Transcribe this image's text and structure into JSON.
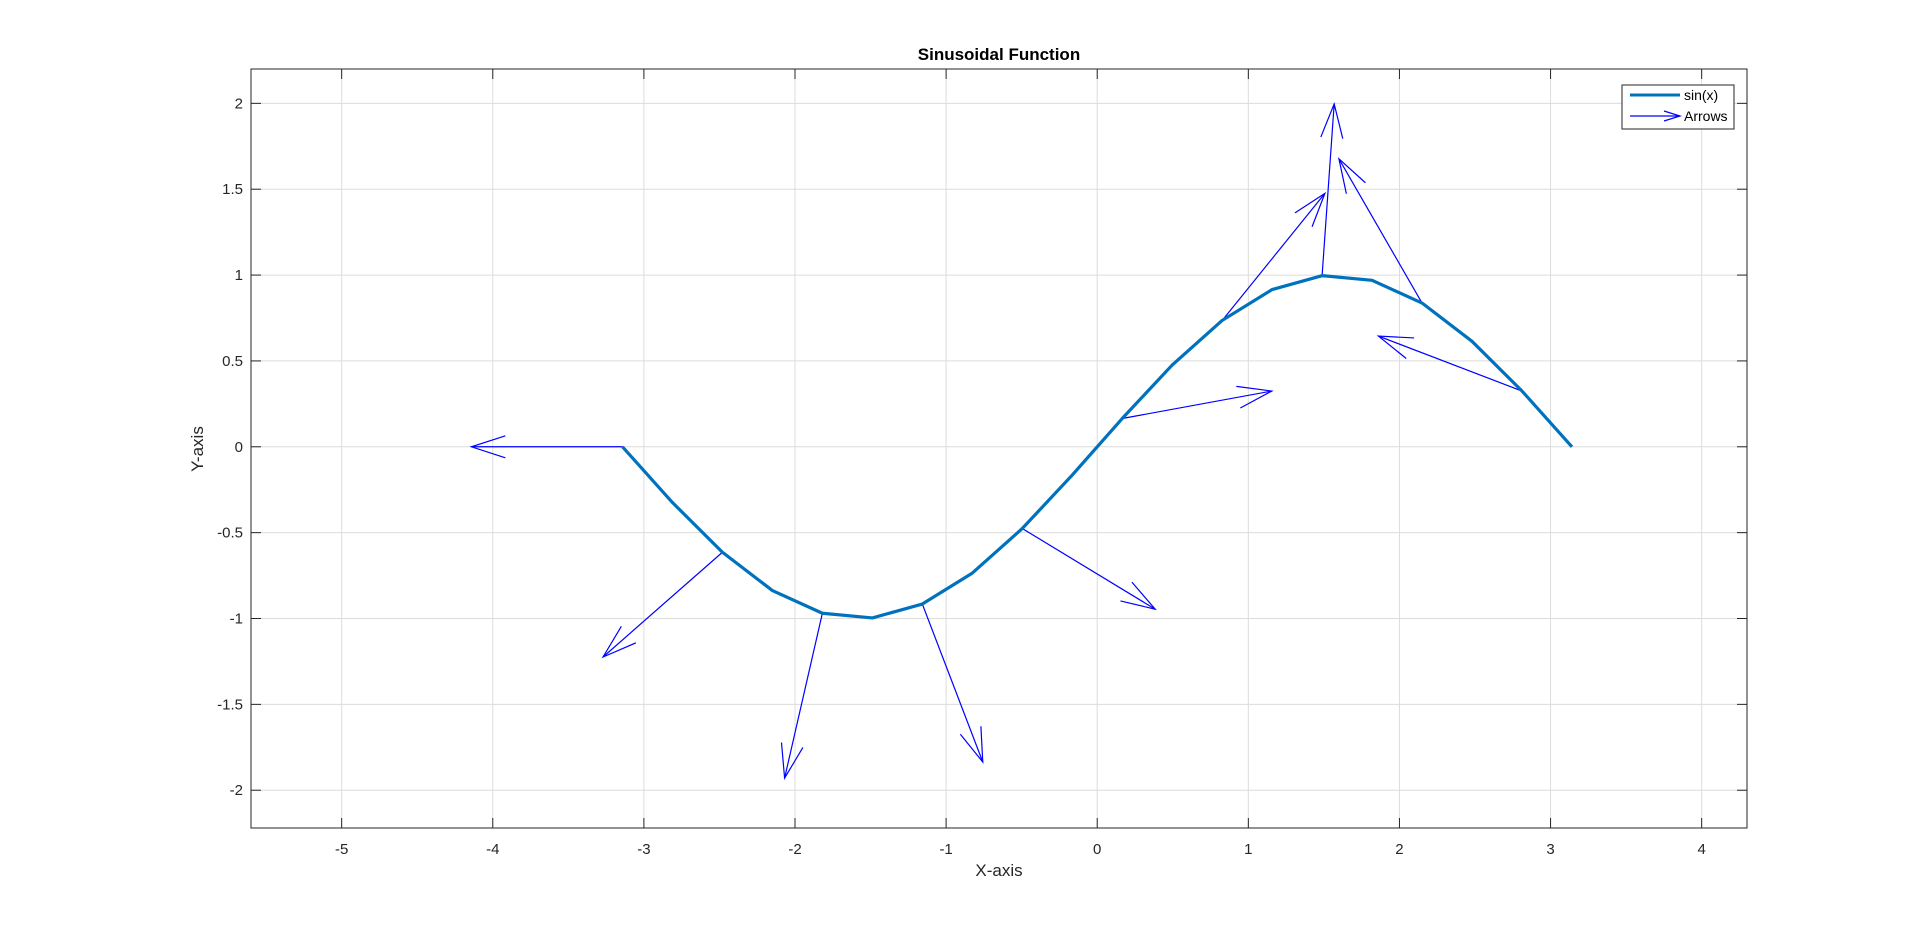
{
  "chart_data": {
    "type": "line",
    "title": "Sinusoidal Function",
    "xlabel": "X-axis",
    "ylabel": "Y-axis",
    "xlim": [
      -5.6,
      4.3
    ],
    "ylim": [
      -2.22,
      2.2
    ],
    "xticks": [
      -5,
      -4,
      -3,
      -2,
      -1,
      0,
      1,
      2,
      3,
      4
    ],
    "xtick_labels": [
      "-5",
      "-4",
      "-3",
      "-2",
      "-1",
      "0",
      "1",
      "2",
      "3",
      "4"
    ],
    "yticks": [
      -2,
      -1.5,
      -1,
      -0.5,
      0,
      0.5,
      1,
      1.5,
      2
    ],
    "ytick_labels": [
      "-2",
      "-1.5",
      "-1",
      "-0.5",
      "0",
      "0.5",
      "1",
      "1.5",
      "2"
    ],
    "grid": true,
    "legend_position": "top-right",
    "series": [
      {
        "name": "sin(x)",
        "kind": "line",
        "color": "#0072BD",
        "x": [
          -3.1416,
          -2.8109,
          -2.4802,
          -2.1495,
          -1.8188,
          -1.4881,
          -1.1574,
          -0.8267,
          -0.496,
          -0.1653,
          0.1653,
          0.496,
          0.8267,
          1.1574,
          1.4881,
          1.8188,
          2.1495,
          2.4802,
          2.8109,
          3.1416
        ],
        "y": [
          0.0,
          -0.3247,
          -0.6142,
          -0.8372,
          -0.9694,
          -0.9966,
          -0.9158,
          -0.7357,
          -0.4759,
          -0.1646,
          0.1646,
          0.4759,
          0.7357,
          0.9158,
          0.9966,
          0.9694,
          0.8372,
          0.6142,
          0.3247,
          0.0
        ]
      },
      {
        "name": "Arrows",
        "kind": "quiver",
        "color": "#0000FF",
        "arrows": [
          {
            "x": -3.1416,
            "y": 0.0,
            "u": -1.0,
            "v": 0.0
          },
          {
            "x": -2.4802,
            "y": -0.6142,
            "u": -0.79,
            "v": -0.61
          },
          {
            "x": -1.8188,
            "y": -0.9694,
            "u": -0.25,
            "v": -0.96
          },
          {
            "x": -1.1574,
            "y": -0.9158,
            "u": 0.4,
            "v": -0.92
          },
          {
            "x": -0.496,
            "y": -0.4759,
            "u": 0.88,
            "v": -0.47
          },
          {
            "x": 0.1653,
            "y": 0.1646,
            "u": 0.99,
            "v": 0.16
          },
          {
            "x": 0.8267,
            "y": 0.7357,
            "u": 0.68,
            "v": 0.74
          },
          {
            "x": 1.4881,
            "y": 0.9966,
            "u": 0.08,
            "v": 1.0
          },
          {
            "x": 2.1495,
            "y": 0.8372,
            "u": -0.55,
            "v": 0.84
          },
          {
            "x": 2.8109,
            "y": 0.3247,
            "u": -0.95,
            "v": 0.32
          }
        ]
      }
    ]
  }
}
